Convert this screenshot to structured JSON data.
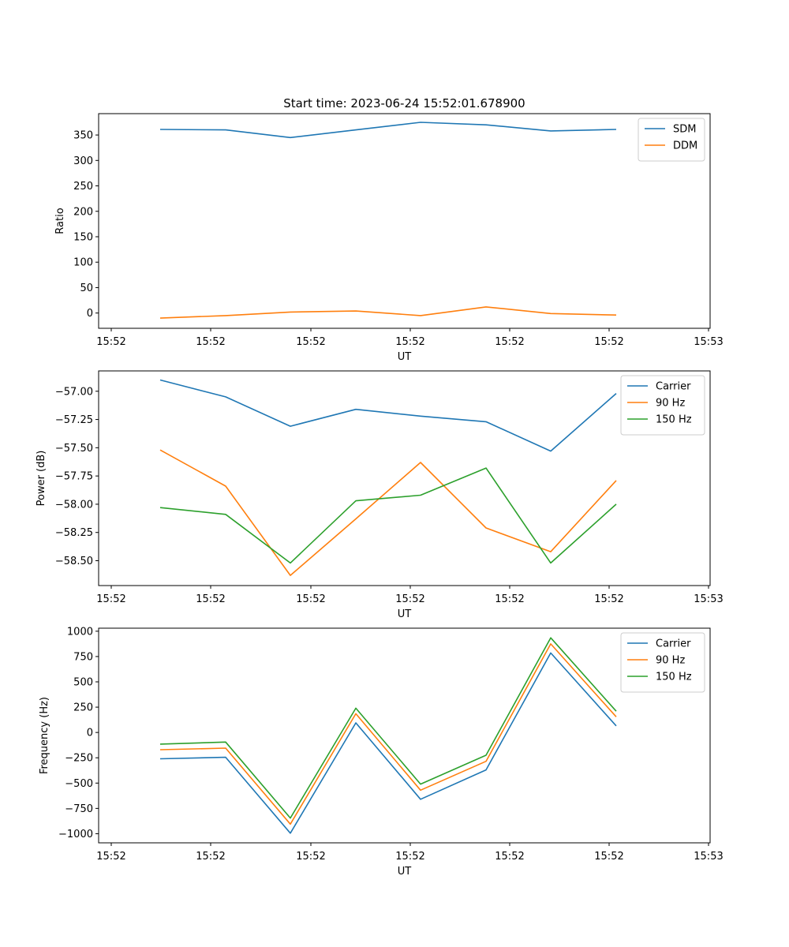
{
  "figure": {
    "title": "Start time: 2023-06-24 15:52:01.678900"
  },
  "chart_data": [
    {
      "type": "line",
      "title": "Start time: 2023-06-24 15:52:01.678900",
      "xlabel": "UT",
      "ylabel": "Ratio",
      "x_tick_labels": [
        "15:52",
        "15:52",
        "15:52",
        "15:52",
        "15:52",
        "15:52",
        "15:53"
      ],
      "y_ticks": [
        0,
        50,
        100,
        150,
        200,
        250,
        300,
        350
      ],
      "ylim": [
        -30,
        392
      ],
      "legend_position": "top-right",
      "series": [
        {
          "name": "SDM",
          "color": "#1f77b4",
          "values": [
            361,
            360,
            345,
            360,
            375,
            370,
            358,
            361
          ]
        },
        {
          "name": "DDM",
          "color": "#ff7f0e",
          "values": [
            -10,
            -5,
            2,
            4,
            -5,
            12,
            -1,
            -4
          ]
        }
      ]
    },
    {
      "type": "line",
      "title": "",
      "xlabel": "UT",
      "ylabel": "Power (dB)",
      "x_tick_labels": [
        "15:52",
        "15:52",
        "15:52",
        "15:52",
        "15:52",
        "15:52",
        "15:53"
      ],
      "y_ticks": [
        -58.5,
        -58.25,
        -58.0,
        -57.75,
        -57.5,
        -57.25,
        -57.0
      ],
      "y_tick_labels": [
        "−58.50",
        "−58.25",
        "−58.00",
        "−57.75",
        "−57.50",
        "−57.25",
        "−57.00"
      ],
      "ylim": [
        -58.72,
        -56.82
      ],
      "legend_position": "top-right",
      "series": [
        {
          "name": "Carrier",
          "color": "#1f77b4",
          "values": [
            -56.9,
            -57.05,
            -57.31,
            -57.16,
            -57.22,
            -57.27,
            -57.53,
            -57.02
          ]
        },
        {
          "name": "90 Hz",
          "color": "#ff7f0e",
          "values": [
            -57.52,
            -57.84,
            -58.63,
            -58.13,
            -57.63,
            -58.21,
            -58.42,
            -57.79
          ]
        },
        {
          "name": "150 Hz",
          "color": "#2ca02c",
          "values": [
            -58.03,
            -58.09,
            -58.52,
            -57.97,
            -57.92,
            -57.68,
            -58.52,
            -58.0
          ]
        }
      ]
    },
    {
      "type": "line",
      "title": "",
      "xlabel": "UT",
      "ylabel": "Frequency (Hz)",
      "x_tick_labels": [
        "15:52",
        "15:52",
        "15:52",
        "15:52",
        "15:52",
        "15:52",
        "15:53"
      ],
      "y_ticks": [
        -1000,
        -750,
        -500,
        -250,
        0,
        250,
        500,
        750,
        1000
      ],
      "y_tick_labels": [
        "−1000",
        "−750",
        "−500",
        "−250",
        "0",
        "250",
        "500",
        "750",
        "1000"
      ],
      "ylim": [
        -1090,
        1030
      ],
      "legend_position": "top-right",
      "series": [
        {
          "name": "Carrier",
          "color": "#1f77b4",
          "values": [
            -260,
            -245,
            -995,
            95,
            -660,
            -370,
            785,
            65
          ]
        },
        {
          "name": "90 Hz",
          "color": "#ff7f0e",
          "values": [
            -170,
            -155,
            -905,
            185,
            -570,
            -285,
            875,
            155
          ]
        },
        {
          "name": "150 Hz",
          "color": "#2ca02c",
          "values": [
            -115,
            -95,
            -845,
            240,
            -510,
            -225,
            935,
            210
          ]
        }
      ]
    }
  ]
}
